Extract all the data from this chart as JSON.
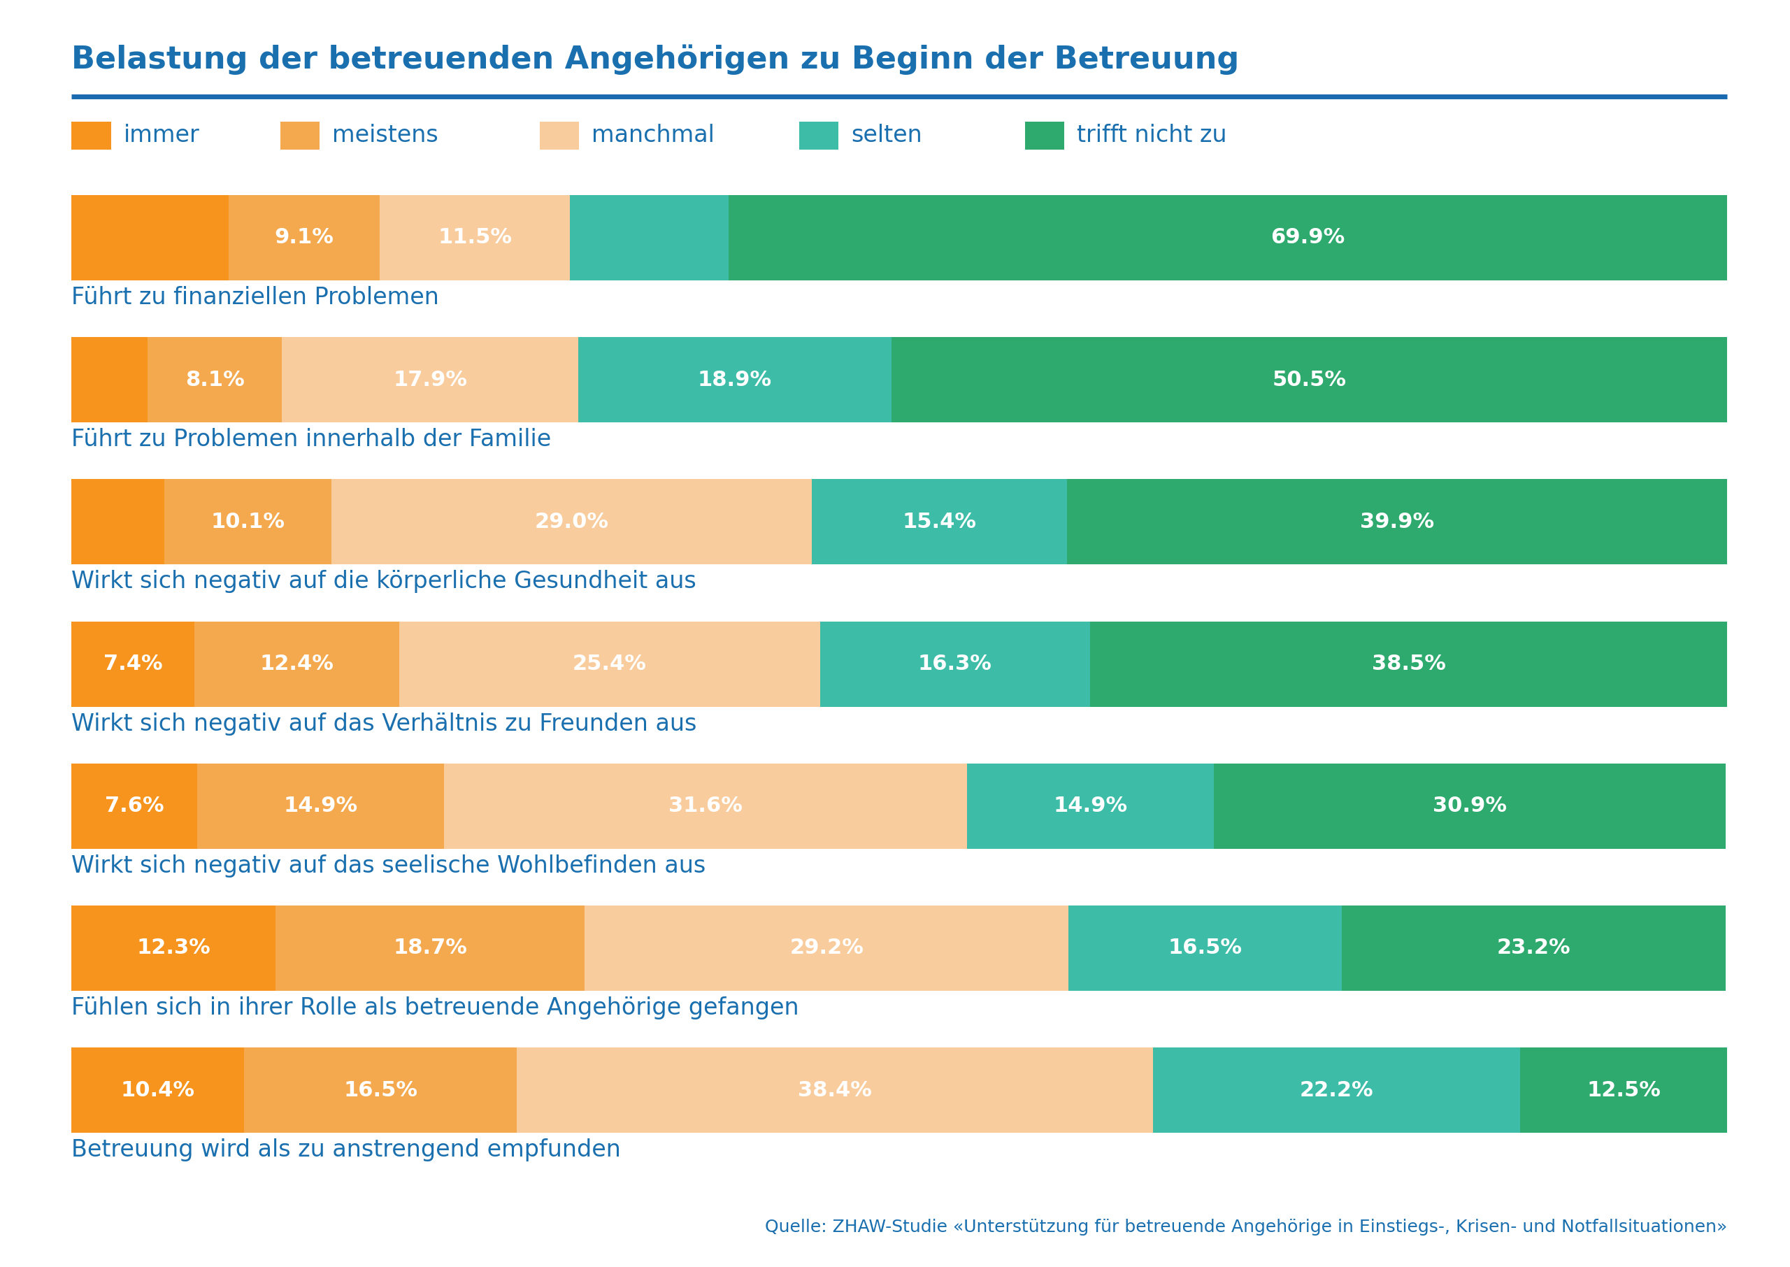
{
  "title": "Belastung der betreuenden Angehörigen zu Beginn der Betreuung",
  "title_color": "#1a6faf",
  "title_fontsize": 32,
  "header_line_color": "#1a6aaf",
  "background_color": "#ffffff",
  "legend_labels": [
    "immer",
    "meistens",
    "manchmal",
    "selten",
    "trifft nicht zu"
  ],
  "legend_colors": [
    "#f7941d",
    "#f5a94e",
    "#f9cc9d",
    "#3dbda7",
    "#2eaa6e"
  ],
  "bar_label_color": "#ffffff",
  "bar_label_fontsize": 22,
  "category_label_color": "#1a6faf",
  "category_label_fontsize": 24,
  "source_text": "Quelle: ZHAW-Studie «Unterstützung für betreuende Angehörige in Einstiegs-, Krisen- und Notfallsituationen»",
  "source_color": "#1a6faf",
  "source_fontsize": 18,
  "bars": [
    {
      "label": "Führt zu finanziellen Problemen",
      "values": [
        9.5,
        9.1,
        11.5,
        9.6,
        69.9
      ],
      "display": [
        "",
        "9.1%",
        "11.5%",
        "",
        "69.9%"
      ]
    },
    {
      "label": "Führt zu Problemen innerhalb der Familie",
      "values": [
        4.6,
        8.1,
        17.9,
        18.9,
        50.5
      ],
      "display": [
        "",
        "8.1%",
        "17.9%",
        "18.9%",
        "50.5%"
      ]
    },
    {
      "label": "Wirkt sich negativ auf die körperliche Gesundheit aus",
      "values": [
        5.6,
        10.1,
        29.0,
        15.4,
        39.9
      ],
      "display": [
        "",
        "10.1%",
        "29.0%",
        "15.4%",
        "39.9%"
      ]
    },
    {
      "label": "Wirkt sich negativ auf das Verhältnis zu Freunden aus",
      "values": [
        7.4,
        12.4,
        25.4,
        16.3,
        38.5
      ],
      "display": [
        "7.4%",
        "12.4%",
        "25.4%",
        "16.3%",
        "38.5%"
      ]
    },
    {
      "label": "Wirkt sich negativ auf das seelische Wohlbefinden aus",
      "values": [
        7.6,
        14.9,
        31.6,
        14.9,
        30.9
      ],
      "display": [
        "7.6%",
        "14.9%",
        "31.6%",
        "14.9%",
        "30.9%"
      ]
    },
    {
      "label": "Fühlen sich in ihrer Rolle als betreuende Angehörige gefangen",
      "values": [
        12.3,
        18.7,
        29.2,
        16.5,
        23.2
      ],
      "display": [
        "12.3%",
        "18.7%",
        "29.2%",
        "16.5%",
        "23.2%"
      ]
    },
    {
      "label": "Betreuung wird als zu anstrengend empfunden",
      "values": [
        10.4,
        16.5,
        38.4,
        22.2,
        12.5
      ],
      "display": [
        "10.4%",
        "16.5%",
        "38.4%",
        "22.2%",
        "12.5%"
      ]
    }
  ],
  "colors": [
    "#f7941d",
    "#f5a94e",
    "#f9cc9d",
    "#3dbda7",
    "#2eaa6e"
  ],
  "bar_height": 0.6
}
